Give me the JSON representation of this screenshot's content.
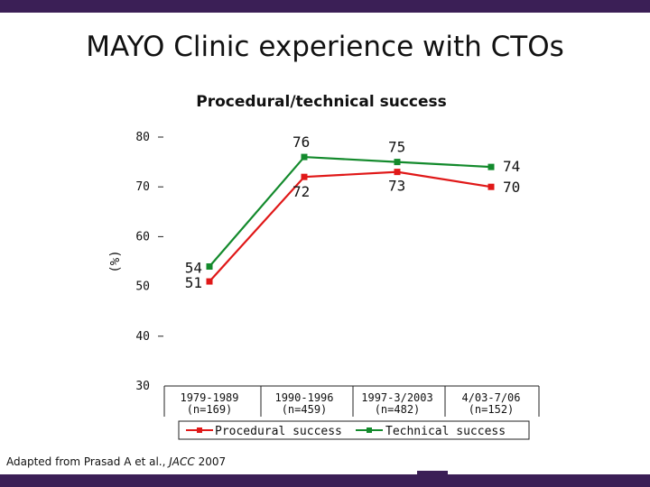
{
  "slide": {
    "title": "MAYO Clinic experience with CTOs",
    "source_prefix": "Adapted from Prasad A et al., ",
    "source_journal": "JACC",
    "source_year": " 2007",
    "colors": {
      "band": "#3b1f56",
      "procedural": "#e01818",
      "technical": "#138a2c"
    }
  },
  "chart_data": {
    "type": "line",
    "title": "Procedural/technical success",
    "ylabel": "(%)",
    "xlabel": "",
    "ylim": [
      30,
      80
    ],
    "yticks": [
      "80",
      "70",
      "60",
      "50",
      "40",
      "30"
    ],
    "ytick_values": [
      80,
      70,
      60,
      50,
      40,
      30
    ],
    "categories": [
      "1979-1989",
      "1990-1996",
      "1997-3/2003",
      "4/03-7/06"
    ],
    "category_n": [
      "(n=169)",
      "(n=459)",
      "(n=482)",
      "(n=152)"
    ],
    "series": [
      {
        "name": "Procedural success",
        "color": "#e01818",
        "values": [
          51,
          72,
          73,
          70
        ],
        "labels": [
          "51",
          "72",
          "73",
          "70"
        ]
      },
      {
        "name": "Technical success",
        "color": "#138a2c",
        "values": [
          54,
          76,
          75,
          74
        ],
        "labels": [
          "54",
          "76",
          "75",
          "74"
        ]
      }
    ],
    "legend": "bottom"
  }
}
